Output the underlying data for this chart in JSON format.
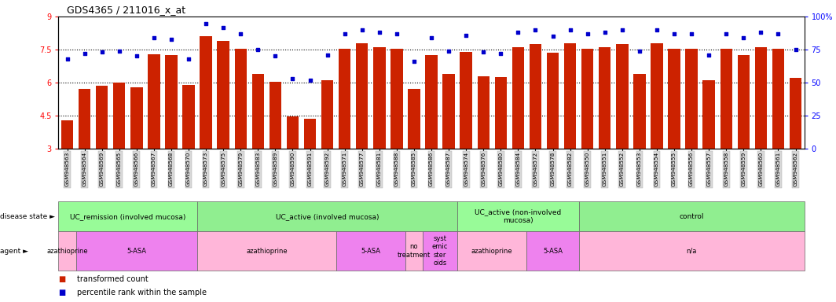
{
  "title": "GDS4365 / 211016_x_at",
  "samples": [
    "GSM948563",
    "GSM948564",
    "GSM948569",
    "GSM948565",
    "GSM948566",
    "GSM948567",
    "GSM948568",
    "GSM948570",
    "GSM948573",
    "GSM948575",
    "GSM948579",
    "GSM948583",
    "GSM948589",
    "GSM948590",
    "GSM948591",
    "GSM948592",
    "GSM948571",
    "GSM948577",
    "GSM948581",
    "GSM948588",
    "GSM948585",
    "GSM948586",
    "GSM948587",
    "GSM948574",
    "GSM948576",
    "GSM948580",
    "GSM948584",
    "GSM948572",
    "GSM948578",
    "GSM948582",
    "GSM948550",
    "GSM948551",
    "GSM948552",
    "GSM948553",
    "GSM948554",
    "GSM948555",
    "GSM948556",
    "GSM948557",
    "GSM948558",
    "GSM948559",
    "GSM948560",
    "GSM948561",
    "GSM948562"
  ],
  "bar_values": [
    4.3,
    5.7,
    5.85,
    6.0,
    5.8,
    7.3,
    7.25,
    5.9,
    8.1,
    7.9,
    7.55,
    6.4,
    6.05,
    4.45,
    4.35,
    6.1,
    7.55,
    7.8,
    7.6,
    7.55,
    5.7,
    7.25,
    6.4,
    7.4,
    6.3,
    6.25,
    7.6,
    7.75,
    7.35,
    7.8,
    7.55,
    7.6,
    7.75,
    6.4,
    7.8,
    7.55,
    7.55,
    6.1,
    7.55,
    7.25,
    7.6,
    7.55,
    6.2
  ],
  "dot_values": [
    68,
    72,
    73,
    74,
    70,
    84,
    83,
    68,
    95,
    92,
    87,
    75,
    70,
    53,
    52,
    71,
    87,
    90,
    88,
    87,
    66,
    84,
    74,
    86,
    73,
    72,
    88,
    90,
    85,
    90,
    87,
    88,
    90,
    74,
    90,
    87,
    87,
    71,
    87,
    84,
    88,
    87,
    75
  ],
  "disease_state_groups": [
    {
      "label": "UC_remission (involved mucosa)",
      "start": 0,
      "end": 8,
      "color": "#98FB98"
    },
    {
      "label": "UC_active (involved mucosa)",
      "start": 8,
      "end": 23,
      "color": "#90EE90"
    },
    {
      "label": "UC_active (non-involved\nmucosa)",
      "start": 23,
      "end": 30,
      "color": "#98FB98"
    },
    {
      "label": "control",
      "start": 30,
      "end": 43,
      "color": "#90EE90"
    }
  ],
  "agent_groups": [
    {
      "label": "azathioprine",
      "start": 0,
      "end": 1,
      "color": "#FFB6D9"
    },
    {
      "label": "5-ASA",
      "start": 1,
      "end": 8,
      "color": "#EE82EE"
    },
    {
      "label": "azathioprine",
      "start": 8,
      "end": 16,
      "color": "#FFB6D9"
    },
    {
      "label": "5-ASA",
      "start": 16,
      "end": 20,
      "color": "#EE82EE"
    },
    {
      "label": "no\ntreatment",
      "start": 20,
      "end": 21,
      "color": "#FFB6D9"
    },
    {
      "label": "syst\nemic\nster\noids",
      "start": 21,
      "end": 23,
      "color": "#EE82EE"
    },
    {
      "label": "azathioprine",
      "start": 23,
      "end": 27,
      "color": "#FFB6D9"
    },
    {
      "label": "5-ASA",
      "start": 27,
      "end": 30,
      "color": "#EE82EE"
    },
    {
      "label": "n/a",
      "start": 30,
      "end": 43,
      "color": "#FFB6D9"
    }
  ],
  "bar_color": "#CC2200",
  "dot_color": "#0000CC",
  "ylim_left": [
    3,
    9
  ],
  "ylim_right": [
    0,
    100
  ],
  "yticks_left": [
    3,
    4.5,
    6,
    7.5,
    9
  ],
  "yticks_right": [
    0,
    25,
    50,
    75,
    100
  ],
  "bar_width": 0.7,
  "fig_width": 10.64,
  "fig_height": 3.84,
  "dpi": 100
}
